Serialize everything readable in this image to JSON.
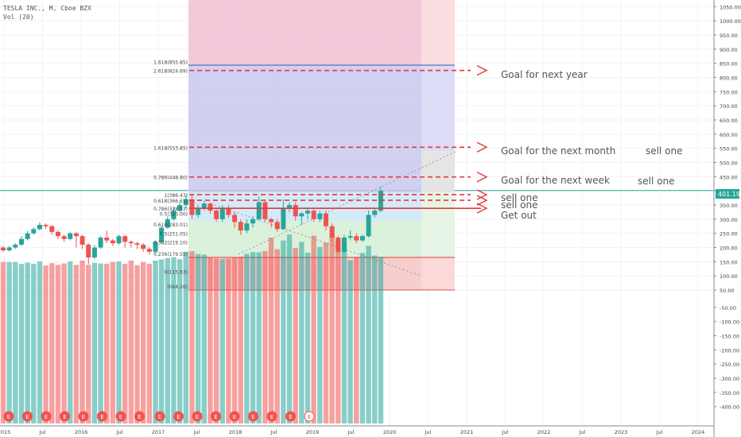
{
  "header": {
    "symbol": "TESLA INC., M, Cboe BZX",
    "volume": "Vol (20)"
  },
  "price_tag": "401.19",
  "annotations": {
    "goal_year": "Goal for next year",
    "goal_month": "Goal for the next month",
    "goal_week": "Goal for the next week",
    "sell_a": "sell one",
    "sell_b": "sell one",
    "sell_c": "sell one",
    "sell_d": "sell one",
    "get_out": "Get out"
  },
  "colors": {
    "up": "#26a69a",
    "down": "#ef5350",
    "arrow": "#e53935",
    "price_line": "#26a69a"
  },
  "chart_data": {
    "type": "candlestick",
    "y_axis_ticks": [
      "1050.00",
      "1000.00",
      "950.00",
      "900.00",
      "850.00",
      "800.00",
      "750.00",
      "700.00",
      "650.00",
      "600.00",
      "550.00",
      "500.00",
      "450.00",
      "400.00",
      "350.00",
      "300.00",
      "250.00",
      "200.00",
      "150.00",
      "100.00",
      "50.00",
      "-50.00",
      "-100.00",
      "-150.00",
      "-200.00",
      "-250.00",
      "-300.00",
      "-350.00",
      "-400.00"
    ],
    "x_axis_ticks": [
      "2015",
      "Jul",
      "2016",
      "Jul",
      "2017",
      "Jul",
      "2018",
      "Jul",
      "2019",
      "Jul",
      "2020",
      "Jul",
      "2021",
      "Jul",
      "2022",
      "Jul",
      "2023",
      "Jul",
      "2024"
    ],
    "ylim": [
      -400,
      1080
    ],
    "last_price": 401.19,
    "candles": [
      [
        200,
        190,
        205,
        185
      ],
      [
        190,
        200,
        205,
        185
      ],
      [
        200,
        210,
        215,
        195
      ],
      [
        210,
        230,
        240,
        205
      ],
      [
        230,
        250,
        258,
        225
      ],
      [
        250,
        265,
        272,
        245
      ],
      [
        265,
        280,
        290,
        260
      ],
      [
        280,
        275,
        285,
        265
      ],
      [
        275,
        255,
        280,
        245
      ],
      [
        255,
        240,
        260,
        230
      ],
      [
        240,
        230,
        245,
        220
      ],
      [
        230,
        250,
        255,
        225
      ],
      [
        250,
        240,
        255,
        200
      ],
      [
        240,
        210,
        245,
        195
      ],
      [
        210,
        165,
        215,
        140
      ],
      [
        165,
        200,
        210,
        160
      ],
      [
        200,
        235,
        240,
        195
      ],
      [
        235,
        225,
        260,
        215
      ],
      [
        225,
        215,
        230,
        205
      ],
      [
        215,
        240,
        245,
        210
      ],
      [
        240,
        220,
        245,
        200
      ],
      [
        220,
        215,
        225,
        200
      ],
      [
        215,
        210,
        220,
        195
      ],
      [
        210,
        195,
        215,
        185
      ],
      [
        195,
        185,
        200,
        175
      ],
      [
        185,
        220,
        225,
        180
      ],
      [
        220,
        270,
        275,
        215
      ],
      [
        270,
        300,
        310,
        265
      ],
      [
        300,
        330,
        340,
        295
      ],
      [
        330,
        350,
        360,
        325
      ],
      [
        350,
        370,
        385,
        340
      ],
      [
        370,
        315,
        385,
        300
      ],
      [
        315,
        340,
        350,
        305
      ],
      [
        340,
        355,
        365,
        330
      ],
      [
        355,
        330,
        360,
        320
      ],
      [
        330,
        300,
        340,
        290
      ],
      [
        300,
        340,
        350,
        290
      ],
      [
        340,
        315,
        350,
        305
      ],
      [
        315,
        290,
        325,
        270
      ],
      [
        290,
        260,
        300,
        245
      ],
      [
        260,
        285,
        300,
        250
      ],
      [
        285,
        300,
        310,
        270
      ],
      [
        300,
        360,
        380,
        295
      ],
      [
        360,
        300,
        370,
        290
      ],
      [
        300,
        290,
        305,
        270
      ],
      [
        290,
        265,
        300,
        255
      ],
      [
        265,
        340,
        370,
        260
      ],
      [
        340,
        350,
        360,
        325
      ],
      [
        350,
        310,
        360,
        295
      ],
      [
        310,
        320,
        325,
        280
      ],
      [
        320,
        330,
        340,
        300
      ],
      [
        330,
        300,
        335,
        290
      ],
      [
        300,
        320,
        330,
        290
      ],
      [
        320,
        275,
        330,
        260
      ],
      [
        275,
        235,
        285,
        220
      ],
      [
        235,
        185,
        240,
        180
      ],
      [
        185,
        235,
        245,
        180
      ],
      [
        235,
        240,
        260,
        225
      ],
      [
        240,
        225,
        250,
        215
      ],
      [
        225,
        240,
        245,
        220
      ],
      [
        240,
        315,
        330,
        235
      ],
      [
        315,
        330,
        340,
        305
      ],
      [
        330,
        400,
        415,
        325
      ]
    ],
    "volumes": [
      110,
      110,
      110,
      103,
      108,
      104,
      112,
      98,
      106,
      100,
      105,
      112,
      100,
      115,
      100,
      107,
      105,
      104,
      110,
      112,
      104,
      115,
      99,
      110,
      104,
      115,
      119,
      124,
      127,
      120,
      146,
      148,
      138,
      136,
      128,
      122,
      120,
      122,
      128,
      129,
      139,
      145,
      144,
      149,
      196,
      155,
      186,
      207,
      160,
      181,
      143,
      203,
      163,
      178,
      211,
      187,
      174,
      116,
      128,
      142,
      167,
      133,
      128
    ],
    "fib_left": [
      {
        "label": "1.618(855.85)",
        "value": 855.85
      },
      {
        "label": "2.618(824.69)",
        "value": 824.69
      },
      {
        "label": "1.618(553.85)",
        "value": 553.85
      },
      {
        "label": "0.786(448.80)",
        "value": 448.8
      },
      {
        "label": "1(386.47)",
        "value": 386.47
      },
      {
        "label": "0.618(366.61)",
        "value": 366.61
      },
      {
        "label": "0.786(338.33)",
        "value": 338.33
      },
      {
        "label": "0.5(320.00)",
        "value": 320.0
      },
      {
        "label": "0.618(283.01)",
        "value": 283.01
      },
      {
        "label": "0.5(251.05)",
        "value": 251.05
      },
      {
        "label": "0.382(219.10)",
        "value": 219.1
      },
      {
        "label": "0.236(179.55)",
        "value": 179.55
      },
      {
        "label": "0(115.63)",
        "value": 115.63
      },
      {
        "label": "0(64.26)",
        "value": 64.26
      }
    ]
  }
}
